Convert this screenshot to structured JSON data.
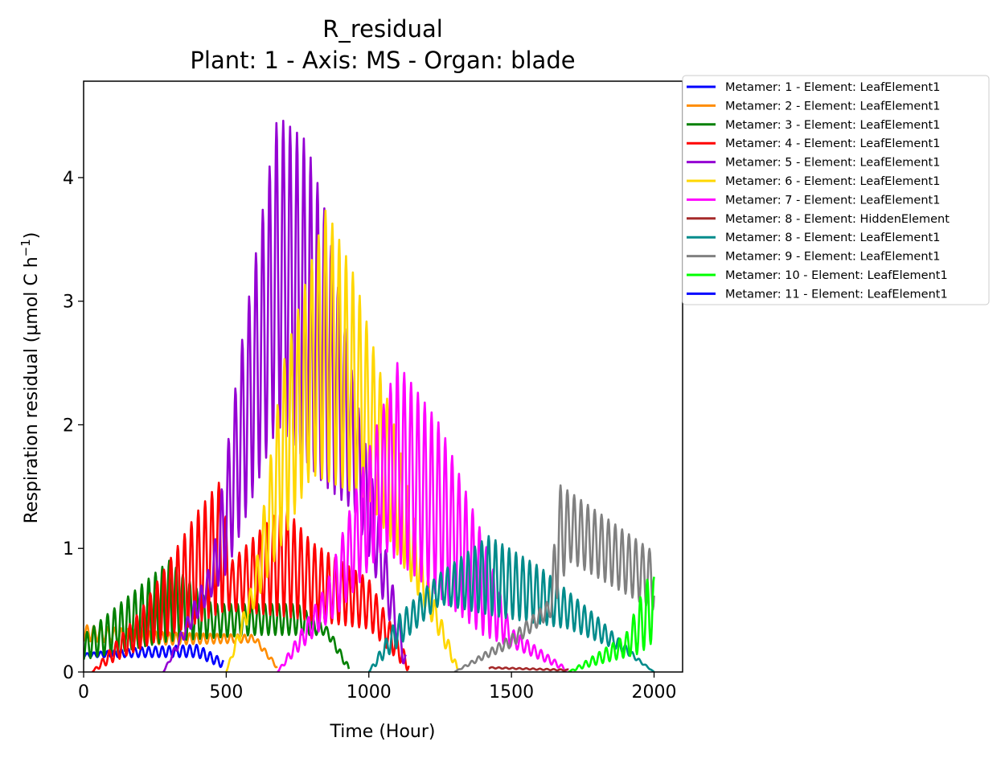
{
  "chart_data": {
    "type": "line",
    "title": "R_residual",
    "subtitle": "Plant: 1 - Axis: MS - Organ: blade",
    "xlabel": "Time (Hour)",
    "ylabel": "Respiration residual (µmol C h",
    "ylabel_sup": "−1",
    "ylabel_tail": ")",
    "xlim": [
      0,
      2100
    ],
    "ylim": [
      0,
      4.78
    ],
    "xticks": [
      0,
      500,
      1000,
      1500,
      2000
    ],
    "xtick_labels": [
      "0",
      "500",
      "1000",
      "1500",
      "2000"
    ],
    "yticks": [
      0,
      1,
      2,
      3,
      4
    ],
    "ytick_labels": [
      "0",
      "1",
      "2",
      "3",
      "4"
    ],
    "grid": false,
    "legend_position": "outside-right",
    "diurnal_period_hours": 24,
    "series": [
      {
        "name": "Metamer: 1 - Element: LeafElement1",
        "color": "#0000ff",
        "base": [
          [
            0,
            0.12
          ],
          [
            200,
            0.12
          ],
          [
            400,
            0.12
          ],
          [
            490,
            0.03
          ]
        ],
        "peak": [
          [
            0,
            0.15
          ],
          [
            200,
            0.2
          ],
          [
            400,
            0.22
          ],
          [
            490,
            0.1
          ]
        ]
      },
      {
        "name": "Metamer: 2 - Element: LeafElement1",
        "color": "#ff8c00",
        "base": [
          [
            0,
            0.25
          ],
          [
            300,
            0.22
          ],
          [
            600,
            0.24
          ],
          [
            680,
            0.02
          ]
        ],
        "peak": [
          [
            0,
            0.38
          ],
          [
            300,
            0.32
          ],
          [
            600,
            0.3
          ],
          [
            680,
            0.05
          ]
        ]
      },
      {
        "name": "Metamer: 3 - Element: LeafElement1",
        "color": "#008000",
        "base": [
          [
            0,
            0.1
          ],
          [
            300,
            0.25
          ],
          [
            600,
            0.3
          ],
          [
            850,
            0.3
          ],
          [
            930,
            0.0
          ]
        ],
        "peak": [
          [
            0,
            0.3
          ],
          [
            250,
            0.8
          ],
          [
            300,
            0.9
          ],
          [
            450,
            0.55
          ],
          [
            750,
            0.55
          ],
          [
            860,
            0.35
          ],
          [
            930,
            0.05
          ]
        ]
      },
      {
        "name": "Metamer: 4 - Element: LeafElement1",
        "color": "#ff0000",
        "base": [
          [
            30,
            0.0
          ],
          [
            300,
            0.3
          ],
          [
            500,
            0.5
          ],
          [
            700,
            0.45
          ],
          [
            1000,
            0.35
          ],
          [
            1140,
            0.0
          ]
        ],
        "peak": [
          [
            30,
            0.0
          ],
          [
            200,
            0.5
          ],
          [
            400,
            1.3
          ],
          [
            480,
            1.55
          ],
          [
            520,
            0.9
          ],
          [
            700,
            1.35
          ],
          [
            800,
            1.05
          ],
          [
            1000,
            0.75
          ],
          [
            1140,
            0.1
          ]
        ]
      },
      {
        "name": "Metamer: 5 - Element: LeafElement1",
        "color": "#9400d3",
        "base": [
          [
            280,
            0.0
          ],
          [
            500,
            0.8
          ],
          [
            680,
            2.0
          ],
          [
            850,
            1.5
          ],
          [
            950,
            1.3
          ],
          [
            1130,
            0.0
          ]
        ],
        "peak": [
          [
            280,
            0.0
          ],
          [
            450,
            0.9
          ],
          [
            550,
            2.6
          ],
          [
            680,
            4.5
          ],
          [
            780,
            4.3
          ],
          [
            850,
            3.7
          ],
          [
            950,
            2.3
          ],
          [
            1130,
            0.15
          ]
        ]
      },
      {
        "name": "Metamer: 6 - Element: LeafElement1",
        "color": "#ffd700",
        "base": [
          [
            500,
            0.0
          ],
          [
            650,
            0.8
          ],
          [
            800,
            1.6
          ],
          [
            1000,
            1.4
          ],
          [
            1200,
            0.5
          ],
          [
            1310,
            0.0
          ]
        ],
        "peak": [
          [
            500,
            0.0
          ],
          [
            600,
            0.8
          ],
          [
            700,
            2.5
          ],
          [
            850,
            3.75
          ],
          [
            950,
            3.2
          ],
          [
            1100,
            1.9
          ],
          [
            1200,
            0.8
          ],
          [
            1310,
            0.05
          ]
        ]
      },
      {
        "name": "Metamer: 7 - Element: LeafElement1",
        "color": "#ff00ff",
        "base": [
          [
            680,
            0.0
          ],
          [
            900,
            0.5
          ],
          [
            1050,
            1.0
          ],
          [
            1200,
            0.7
          ],
          [
            1400,
            0.3
          ],
          [
            1700,
            0.0
          ]
        ],
        "peak": [
          [
            680,
            0.0
          ],
          [
            850,
            0.7
          ],
          [
            1000,
            1.8
          ],
          [
            1100,
            2.5
          ],
          [
            1250,
            2.0
          ],
          [
            1400,
            1.1
          ],
          [
            1500,
            0.35
          ],
          [
            1700,
            0.02
          ]
        ]
      },
      {
        "name": "Metamer: 8 - Element: HiddenElement",
        "color": "#a52a2a",
        "base": [
          [
            1420,
            0.03
          ],
          [
            1700,
            0.01
          ]
        ],
        "peak": [
          [
            1420,
            0.04
          ],
          [
            1700,
            0.02
          ]
        ]
      },
      {
        "name": "Metamer: 8 - Element: LeafElement1",
        "color": "#008b8b",
        "base": [
          [
            1000,
            0.0
          ],
          [
            1100,
            0.2
          ],
          [
            1250,
            0.55
          ],
          [
            1450,
            0.45
          ],
          [
            1700,
            0.35
          ],
          [
            1900,
            0.15
          ],
          [
            2000,
            0.0
          ]
        ],
        "peak": [
          [
            1000,
            0.0
          ],
          [
            1100,
            0.45
          ],
          [
            1250,
            0.8
          ],
          [
            1420,
            1.1
          ],
          [
            1600,
            0.85
          ],
          [
            1800,
            0.45
          ],
          [
            1950,
            0.1
          ],
          [
            2000,
            0.0
          ]
        ]
      },
      {
        "name": "Metamer: 9 - Element: LeafElement1",
        "color": "#808080",
        "base": [
          [
            1300,
            0.0
          ],
          [
            1500,
            0.2
          ],
          [
            1640,
            0.45
          ],
          [
            1700,
            0.9
          ],
          [
            2000,
            0.5
          ]
        ],
        "peak": [
          [
            1300,
            0.0
          ],
          [
            1500,
            0.3
          ],
          [
            1640,
            0.6
          ],
          [
            1660,
            1.53
          ],
          [
            2000,
            0.97
          ]
        ]
      },
      {
        "name": "Metamer: 10 - Element: LeafElement1",
        "color": "#00ff00",
        "base": [
          [
            1700,
            0.0
          ],
          [
            1950,
            0.15
          ],
          [
            2000,
            0.25
          ]
        ],
        "peak": [
          [
            1700,
            0.0
          ],
          [
            1900,
            0.3
          ],
          [
            1980,
            0.77
          ],
          [
            2000,
            0.77
          ]
        ]
      },
      {
        "name": "Metamer: 11 - Element: LeafElement1",
        "color": "#0000ff",
        "base": [],
        "peak": []
      }
    ]
  }
}
